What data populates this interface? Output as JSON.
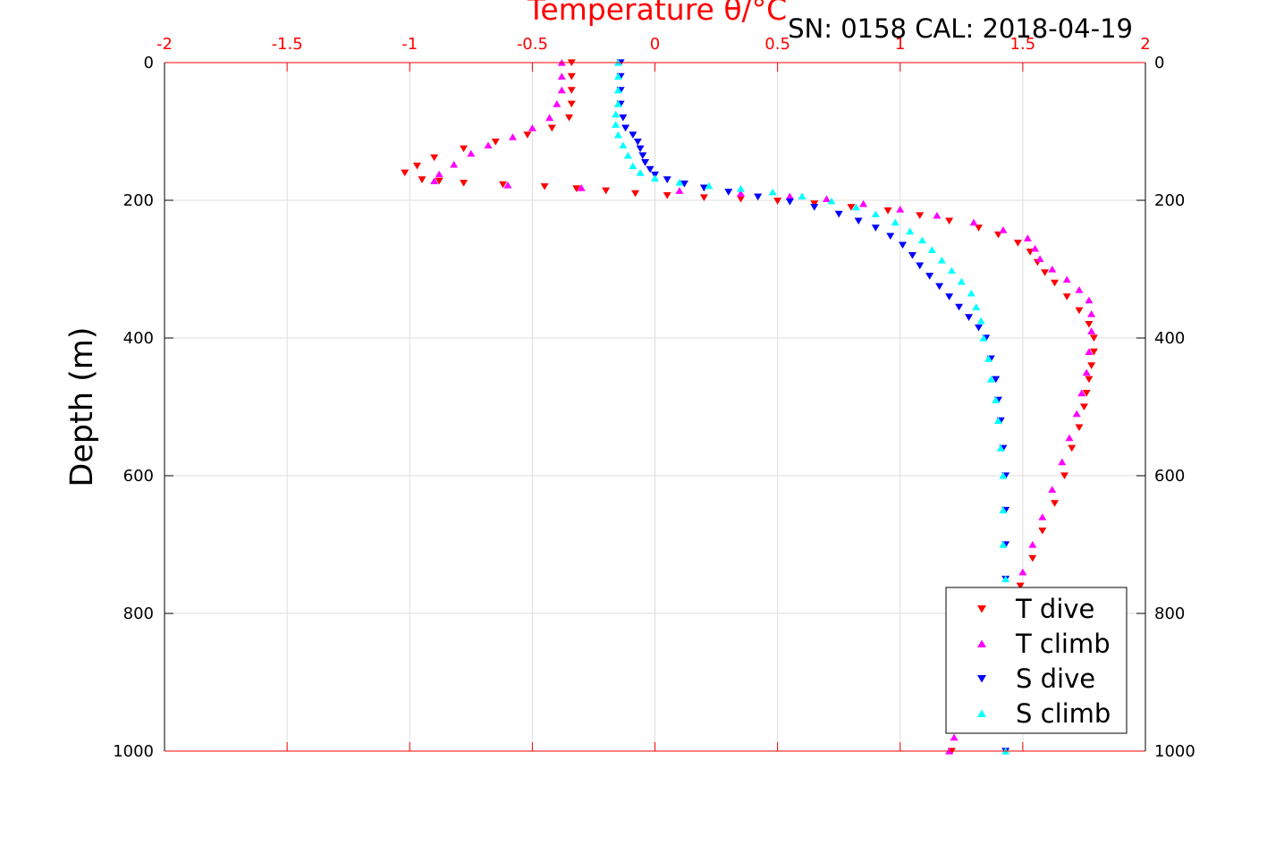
{
  "chart_data": {
    "type": "scatter",
    "title": "Temperature θ/°C",
    "subtitle": "SN: 0158  CAL: 2018-04-19",
    "xlabel": "Temperature θ/°C",
    "ylabel": "Depth (m)",
    "xlim": [
      -2,
      2
    ],
    "ylim": [
      0,
      1000
    ],
    "y_reversed": true,
    "x_axis_location": "top",
    "x_ticks": [
      "-2",
      "-1.5",
      "-1",
      "-0.5",
      "0",
      "0.5",
      "1",
      "1.5",
      "2"
    ],
    "y_ticks": [
      "0",
      "200",
      "400",
      "600",
      "800",
      "1000"
    ],
    "grid": true,
    "legend_position": "bottom-right",
    "colors": {
      "axis_top": "#ff0000",
      "axis_side": "#000000",
      "grid": "#dddddd"
    },
    "series": [
      {
        "name": "T dive",
        "marker": "triangle-down",
        "color": "#ff0000",
        "points": [
          [
            -0.34,
            0
          ],
          [
            -0.34,
            20
          ],
          [
            -0.34,
            40
          ],
          [
            -0.34,
            60
          ],
          [
            -0.35,
            80
          ],
          [
            -0.42,
            95
          ],
          [
            -0.52,
            105
          ],
          [
            -0.65,
            115
          ],
          [
            -0.78,
            125
          ],
          [
            -0.9,
            138
          ],
          [
            -0.97,
            150
          ],
          [
            -1.02,
            160
          ],
          [
            -0.95,
            170
          ],
          [
            -0.88,
            172
          ],
          [
            -0.78,
            175
          ],
          [
            -0.62,
            177
          ],
          [
            -0.45,
            180
          ],
          [
            -0.32,
            183
          ],
          [
            -0.2,
            186
          ],
          [
            -0.08,
            190
          ],
          [
            0.05,
            193
          ],
          [
            0.2,
            196
          ],
          [
            0.35,
            198
          ],
          [
            0.5,
            201
          ],
          [
            0.65,
            205
          ],
          [
            0.8,
            210
          ],
          [
            0.95,
            215
          ],
          [
            1.08,
            222
          ],
          [
            1.2,
            230
          ],
          [
            1.32,
            240
          ],
          [
            1.4,
            250
          ],
          [
            1.48,
            262
          ],
          [
            1.53,
            275
          ],
          [
            1.56,
            290
          ],
          [
            1.59,
            305
          ],
          [
            1.63,
            320
          ],
          [
            1.68,
            340
          ],
          [
            1.73,
            360
          ],
          [
            1.77,
            380
          ],
          [
            1.79,
            400
          ],
          [
            1.79,
            420
          ],
          [
            1.78,
            440
          ],
          [
            1.77,
            460
          ],
          [
            1.76,
            480
          ],
          [
            1.75,
            500
          ],
          [
            1.73,
            530
          ],
          [
            1.7,
            560
          ],
          [
            1.67,
            600
          ],
          [
            1.63,
            640
          ],
          [
            1.58,
            680
          ],
          [
            1.54,
            720
          ],
          [
            1.49,
            760
          ],
          [
            1.43,
            800
          ],
          [
            1.37,
            840
          ],
          [
            1.31,
            880
          ],
          [
            1.27,
            920
          ],
          [
            1.24,
            960
          ],
          [
            1.21,
            1000
          ]
        ]
      },
      {
        "name": "T climb",
        "marker": "triangle-up",
        "color": "#ff00ff",
        "points": [
          [
            -0.38,
            0
          ],
          [
            -0.38,
            20
          ],
          [
            -0.38,
            40
          ],
          [
            -0.4,
            60
          ],
          [
            -0.43,
            80
          ],
          [
            -0.5,
            95
          ],
          [
            -0.58,
            108
          ],
          [
            -0.68,
            120
          ],
          [
            -0.75,
            132
          ],
          [
            -0.82,
            148
          ],
          [
            -0.88,
            162
          ],
          [
            -0.9,
            172
          ],
          [
            -0.6,
            178
          ],
          [
            -0.3,
            182
          ],
          [
            0.1,
            186
          ],
          [
            0.35,
            190
          ],
          [
            0.55,
            194
          ],
          [
            0.7,
            198
          ],
          [
            0.85,
            205
          ],
          [
            1.0,
            213
          ],
          [
            1.15,
            222
          ],
          [
            1.3,
            232
          ],
          [
            1.42,
            243
          ],
          [
            1.52,
            255
          ],
          [
            1.55,
            270
          ],
          [
            1.57,
            285
          ],
          [
            1.62,
            300
          ],
          [
            1.68,
            315
          ],
          [
            1.73,
            330
          ],
          [
            1.77,
            345
          ],
          [
            1.78,
            365
          ],
          [
            1.78,
            390
          ],
          [
            1.77,
            420
          ],
          [
            1.76,
            450
          ],
          [
            1.74,
            480
          ],
          [
            1.72,
            510
          ],
          [
            1.69,
            545
          ],
          [
            1.66,
            580
          ],
          [
            1.62,
            620
          ],
          [
            1.58,
            660
          ],
          [
            1.54,
            700
          ],
          [
            1.5,
            740
          ],
          [
            1.45,
            780
          ],
          [
            1.4,
            820
          ],
          [
            1.35,
            860
          ],
          [
            1.3,
            900
          ],
          [
            1.26,
            940
          ],
          [
            1.22,
            980
          ],
          [
            1.2,
            1000
          ]
        ]
      },
      {
        "name": "S dive",
        "marker": "triangle-down",
        "color": "#0000ff",
        "points": [
          [
            -0.14,
            0
          ],
          [
            -0.14,
            20
          ],
          [
            -0.14,
            40
          ],
          [
            -0.14,
            60
          ],
          [
            -0.13,
            80
          ],
          [
            -0.12,
            95
          ],
          [
            -0.09,
            105
          ],
          [
            -0.07,
            115
          ],
          [
            -0.06,
            125
          ],
          [
            -0.05,
            135
          ],
          [
            -0.04,
            145
          ],
          [
            -0.02,
            155
          ],
          [
            0.0,
            163
          ],
          [
            0.05,
            170
          ],
          [
            0.12,
            176
          ],
          [
            0.2,
            182
          ],
          [
            0.3,
            188
          ],
          [
            0.42,
            195
          ],
          [
            0.55,
            202
          ],
          [
            0.65,
            210
          ],
          [
            0.75,
            220
          ],
          [
            0.83,
            230
          ],
          [
            0.9,
            240
          ],
          [
            0.96,
            252
          ],
          [
            1.01,
            265
          ],
          [
            1.05,
            280
          ],
          [
            1.08,
            295
          ],
          [
            1.12,
            310
          ],
          [
            1.16,
            325
          ],
          [
            1.2,
            340
          ],
          [
            1.24,
            355
          ],
          [
            1.28,
            370
          ],
          [
            1.32,
            385
          ],
          [
            1.35,
            400
          ],
          [
            1.37,
            430
          ],
          [
            1.39,
            460
          ],
          [
            1.4,
            490
          ],
          [
            1.41,
            520
          ],
          [
            1.42,
            560
          ],
          [
            1.43,
            600
          ],
          [
            1.43,
            650
          ],
          [
            1.43,
            700
          ],
          [
            1.43,
            750
          ],
          [
            1.43,
            800
          ],
          [
            1.43,
            850
          ],
          [
            1.43,
            900
          ],
          [
            1.43,
            950
          ],
          [
            1.43,
            1000
          ]
        ]
      },
      {
        "name": "S climb",
        "marker": "triangle-up",
        "color": "#00ffff",
        "points": [
          [
            -0.15,
            0
          ],
          [
            -0.15,
            20
          ],
          [
            -0.15,
            40
          ],
          [
            -0.15,
            60
          ],
          [
            -0.16,
            75
          ],
          [
            -0.16,
            90
          ],
          [
            -0.15,
            105
          ],
          [
            -0.13,
            120
          ],
          [
            -0.11,
            135
          ],
          [
            -0.09,
            150
          ],
          [
            -0.06,
            160
          ],
          [
            0.0,
            168
          ],
          [
            0.1,
            174
          ],
          [
            0.22,
            179
          ],
          [
            0.35,
            183
          ],
          [
            0.48,
            188
          ],
          [
            0.6,
            194
          ],
          [
            0.72,
            201
          ],
          [
            0.82,
            210
          ],
          [
            0.9,
            220
          ],
          [
            0.98,
            232
          ],
          [
            1.04,
            245
          ],
          [
            1.09,
            258
          ],
          [
            1.13,
            272
          ],
          [
            1.17,
            287
          ],
          [
            1.21,
            302
          ],
          [
            1.25,
            318
          ],
          [
            1.29,
            335
          ],
          [
            1.31,
            355
          ],
          [
            1.33,
            375
          ],
          [
            1.34,
            400
          ],
          [
            1.36,
            430
          ],
          [
            1.37,
            460
          ],
          [
            1.39,
            490
          ],
          [
            1.4,
            520
          ],
          [
            1.41,
            560
          ],
          [
            1.42,
            600
          ],
          [
            1.42,
            650
          ],
          [
            1.42,
            700
          ],
          [
            1.43,
            750
          ],
          [
            1.43,
            800
          ],
          [
            1.43,
            850
          ],
          [
            1.43,
            900
          ],
          [
            1.43,
            950
          ],
          [
            1.43,
            1000
          ]
        ]
      }
    ]
  }
}
